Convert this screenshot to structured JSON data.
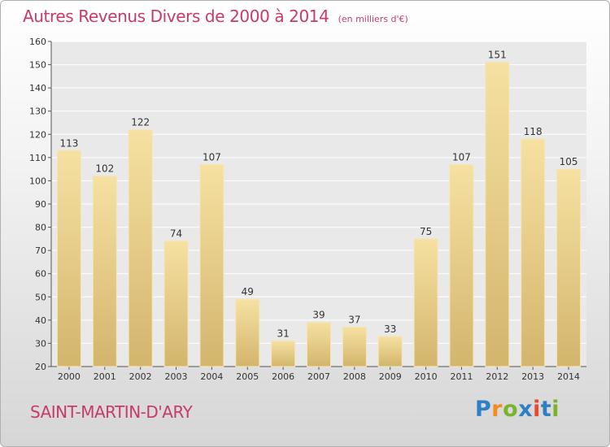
{
  "header": {
    "title": "Autres Revenus Divers de 2000 à 2014",
    "unit": "(en milliers d'€)"
  },
  "footer": {
    "place": "SAINT-MARTIN-D'ARY",
    "brand": [
      "P",
      "r",
      "o",
      "x",
      "i",
      "t",
      "i"
    ]
  },
  "colors": {
    "title": "#c73a6a",
    "bar_light": "#f6e1a2",
    "bar_dark": "#d3b56c",
    "brand": [
      "#2e7fc4",
      "#f28c1e",
      "#7ab32e",
      "#2e7fc4",
      "#e84a2a",
      "#2e7fc4",
      "#7ab32e"
    ]
  },
  "chart_data": {
    "type": "bar",
    "title": "Autres Revenus Divers de 2000 à 2014",
    "xlabel": "",
    "ylabel": "",
    "categories": [
      "2000",
      "2001",
      "2002",
      "2003",
      "2004",
      "2005",
      "2006",
      "2007",
      "2008",
      "2009",
      "2010",
      "2011",
      "2012",
      "2013",
      "2014"
    ],
    "values": [
      113,
      102,
      122,
      74,
      107,
      49,
      31,
      39,
      37,
      33,
      75,
      107,
      151,
      118,
      105
    ],
    "ylim": [
      20,
      160
    ],
    "yticks": [
      20,
      30,
      40,
      50,
      60,
      70,
      80,
      90,
      100,
      110,
      120,
      130,
      140,
      150,
      160
    ],
    "grid": true,
    "data_labels": true
  }
}
